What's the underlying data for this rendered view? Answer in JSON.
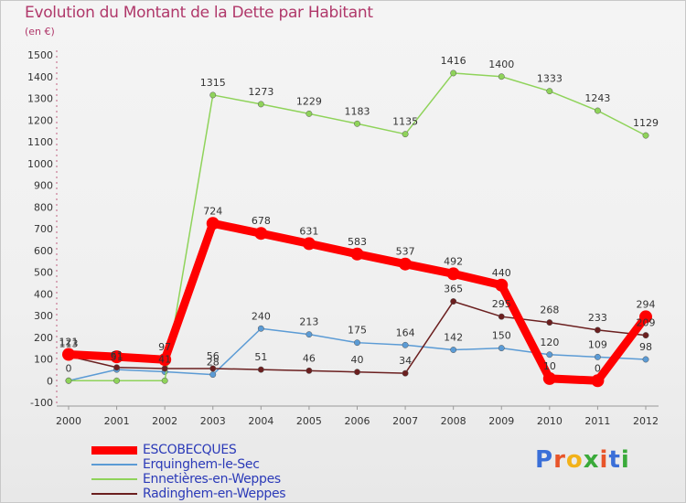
{
  "header": {
    "title": "Evolution du Montant de la Dette par Habitant",
    "subtitle": "(en €)"
  },
  "logo": {
    "text": "Proxiti"
  },
  "chart_data": {
    "type": "line",
    "title": "Evolution du Montant de la Dette par Habitant",
    "subtitle": "(en €)",
    "x": [
      "2000",
      "2001",
      "2002",
      "2003",
      "2004",
      "2005",
      "2006",
      "2007",
      "2008",
      "2009",
      "2010",
      "2011",
      "2012"
    ],
    "y_ticks": [
      "-100",
      "0",
      "100",
      "200",
      "300",
      "400",
      "500",
      "600",
      "700",
      "800",
      "900",
      "1000",
      "1100",
      "1200",
      "1300",
      "1400",
      "1500"
    ],
    "ylim": [
      -100,
      1500
    ],
    "grid": false,
    "legend_position": "bottom-left",
    "series": [
      {
        "name": "ESCOBECQUES",
        "color": "#ff0000",
        "values": [
          121,
          110,
          97,
          724,
          678,
          631,
          583,
          537,
          492,
          440,
          10,
          0,
          294
        ],
        "labels": [
          "121",
          "",
          "97",
          "724",
          "678",
          "631",
          "583",
          "537",
          "492",
          "440",
          "10",
          "0",
          "294"
        ]
      },
      {
        "name": "Erquinghem-le-Sec",
        "color": "#5b9bd5",
        "values": [
          0,
          51,
          41,
          28,
          240,
          213,
          175,
          164,
          142,
          150,
          120,
          109,
          98
        ],
        "labels": [
          "0",
          "51",
          "41",
          "28",
          "240",
          "213",
          "175",
          "164",
          "142",
          "150",
          "120",
          "109",
          "98"
        ]
      },
      {
        "name": "Ennetières-en-Weppes",
        "color": "#8fd35a",
        "values": [
          0,
          0,
          0,
          1315,
          1273,
          1229,
          1183,
          1135,
          1416,
          1400,
          1333,
          1243,
          1129
        ],
        "labels": [
          "",
          "",
          "",
          "1315",
          "1273",
          "1229",
          "1183",
          "1135",
          "1416",
          "1400",
          "1333",
          "1243",
          "1129"
        ]
      },
      {
        "name": "Radinghem-en-Weppes",
        "color": "#6b1f1f",
        "values": [
          113,
          61,
          56,
          56,
          51,
          46,
          40,
          34,
          365,
          295,
          268,
          233,
          209
        ],
        "labels": [
          "113",
          "61",
          "",
          "56",
          "51",
          "46",
          "40",
          "34",
          "365",
          "295",
          "268",
          "233",
          "209"
        ]
      }
    ]
  }
}
